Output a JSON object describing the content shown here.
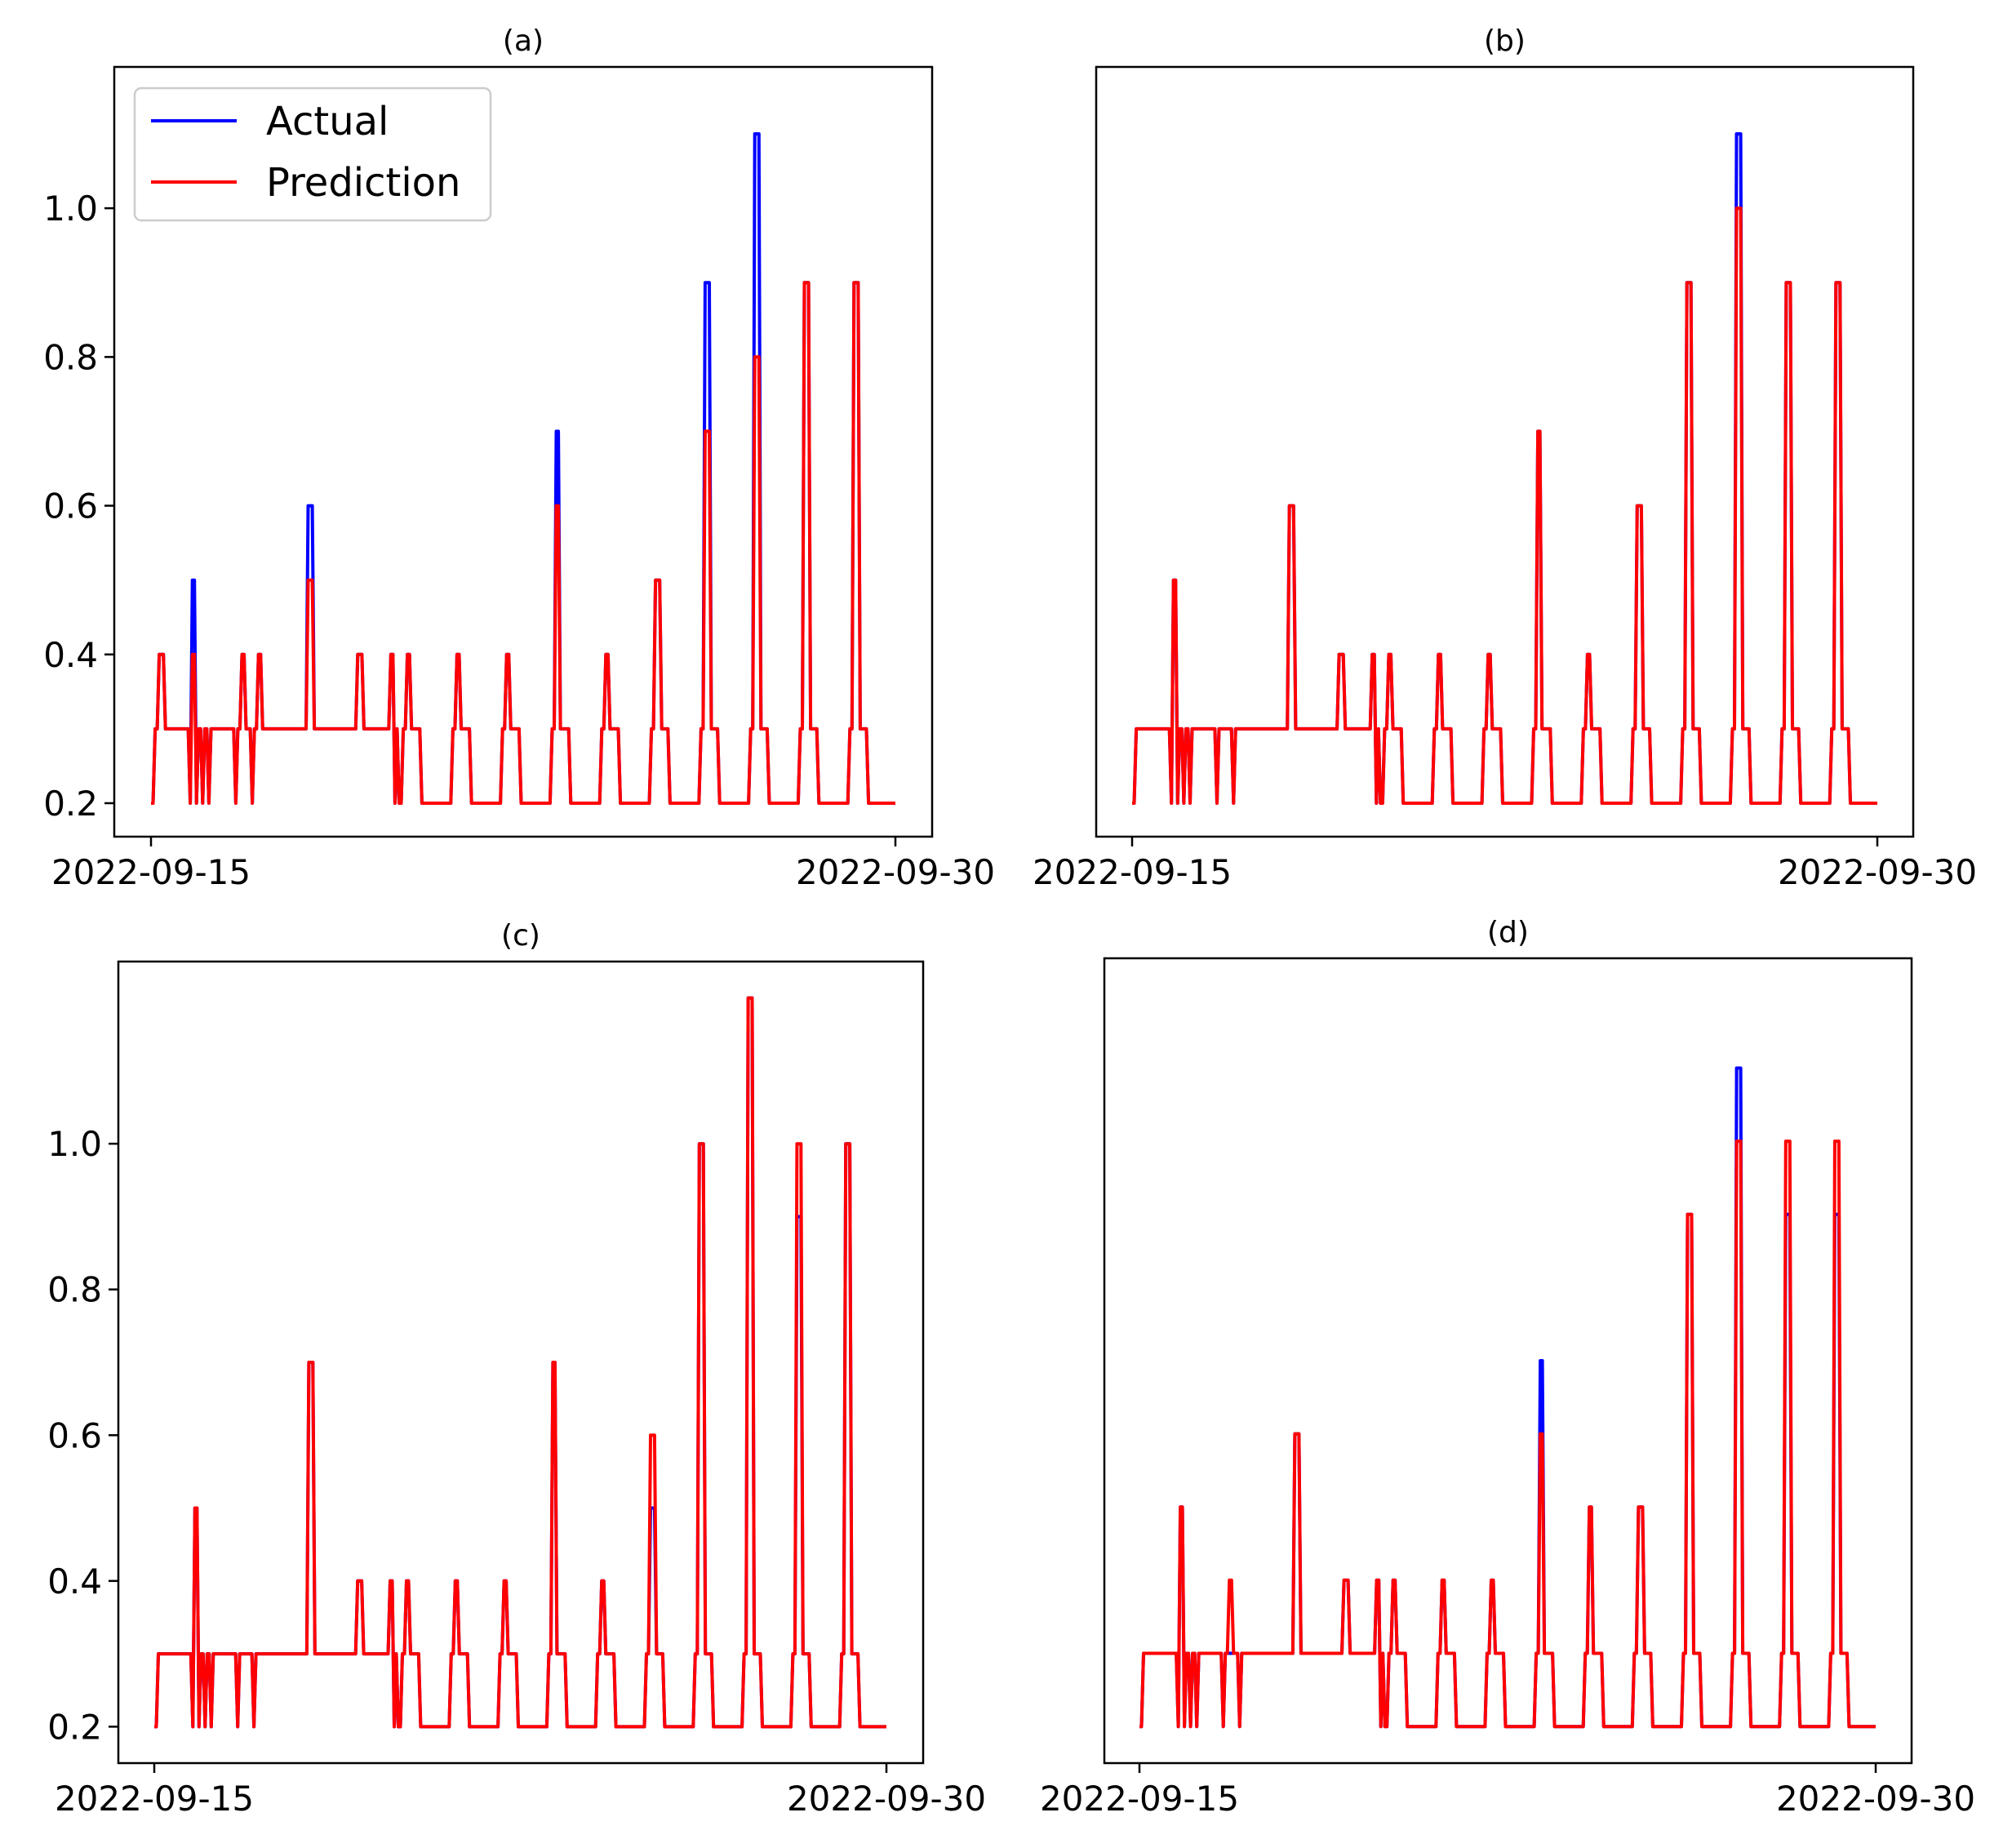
{
  "colors": {
    "actual": "#0000ff",
    "prediction": "#ff0000",
    "axes": "#000000"
  },
  "legend": {
    "items": [
      {
        "label": "Actual",
        "color": "#0000ff"
      },
      {
        "label": "Prediction",
        "color": "#ff0000"
      }
    ],
    "placement": "upper-left of panel (a)"
  },
  "chart_data": [
    {
      "title": "(a)",
      "type": "line",
      "x_ticks": [
        "2022-09-15",
        "2022-09-30"
      ],
      "y_ticks": [
        "0.2",
        "0.4",
        "0.6",
        "0.8",
        "1.0"
      ],
      "ylim": [
        0.155,
        1.19
      ],
      "series": [
        {
          "name": "Actual",
          "color": "#0000ff",
          "peaks": [
            {
              "t": 0.2,
              "v": 0.4
            },
            {
              "t": 0.85,
              "v": 0.5
            },
            {
              "t": 1.85,
              "v": 0.4
            },
            {
              "t": 2.2,
              "v": 0.4
            },
            {
              "t": 3.2,
              "v": 0.6
            },
            {
              "t": 4.2,
              "v": 0.4
            },
            {
              "t": 4.85,
              "v": 0.4
            },
            {
              "t": 5.2,
              "v": 0.4
            },
            {
              "t": 6.2,
              "v": 0.4
            },
            {
              "t": 7.2,
              "v": 0.4
            },
            {
              "t": 8.2,
              "v": 0.7
            },
            {
              "t": 9.2,
              "v": 0.4
            },
            {
              "t": 10.2,
              "v": 0.5
            },
            {
              "t": 11.2,
              "v": 0.9
            },
            {
              "t": 12.2,
              "v": 1.1
            },
            {
              "t": 13.2,
              "v": 0.9
            },
            {
              "t": 14.2,
              "v": 0.9
            }
          ]
        },
        {
          "name": "Prediction",
          "color": "#ff0000",
          "peaks": [
            {
              "t": 0.2,
              "v": 0.4
            },
            {
              "t": 0.85,
              "v": 0.4
            },
            {
              "t": 1.85,
              "v": 0.4
            },
            {
              "t": 2.2,
              "v": 0.4
            },
            {
              "t": 3.2,
              "v": 0.5
            },
            {
              "t": 4.2,
              "v": 0.4
            },
            {
              "t": 4.85,
              "v": 0.4
            },
            {
              "t": 5.2,
              "v": 0.4
            },
            {
              "t": 6.2,
              "v": 0.4
            },
            {
              "t": 7.2,
              "v": 0.4
            },
            {
              "t": 8.2,
              "v": 0.6
            },
            {
              "t": 9.2,
              "v": 0.4
            },
            {
              "t": 10.2,
              "v": 0.5
            },
            {
              "t": 11.2,
              "v": 0.7
            },
            {
              "t": 12.2,
              "v": 0.8
            },
            {
              "t": 13.2,
              "v": 0.9
            },
            {
              "t": 14.2,
              "v": 0.9
            }
          ]
        }
      ]
    },
    {
      "title": "(b)",
      "type": "line",
      "x_ticks": [
        "2022-09-15",
        "2022-09-30"
      ],
      "y_ticks": [],
      "ylim": [
        0.155,
        1.19
      ],
      "series": [
        {
          "name": "Actual",
          "color": "#0000ff",
          "peaks": [
            {
              "t": 0.2,
              "v": 0.3
            },
            {
              "t": 0.85,
              "v": 0.5
            },
            {
              "t": 1.85,
              "v": 0.3
            },
            {
              "t": 2.2,
              "v": 0.3
            },
            {
              "t": 3.2,
              "v": 0.6
            },
            {
              "t": 4.2,
              "v": 0.4
            },
            {
              "t": 4.85,
              "v": 0.4
            },
            {
              "t": 5.2,
              "v": 0.4
            },
            {
              "t": 6.2,
              "v": 0.4
            },
            {
              "t": 7.2,
              "v": 0.4
            },
            {
              "t": 8.2,
              "v": 0.7
            },
            {
              "t": 9.2,
              "v": 0.4
            },
            {
              "t": 10.2,
              "v": 0.6
            },
            {
              "t": 11.2,
              "v": 0.9
            },
            {
              "t": 12.2,
              "v": 1.1
            },
            {
              "t": 13.2,
              "v": 0.9
            },
            {
              "t": 14.2,
              "v": 0.9
            }
          ]
        },
        {
          "name": "Prediction",
          "color": "#ff0000",
          "peaks": [
            {
              "t": 0.2,
              "v": 0.3
            },
            {
              "t": 0.85,
              "v": 0.5
            },
            {
              "t": 1.85,
              "v": 0.3
            },
            {
              "t": 2.2,
              "v": 0.3
            },
            {
              "t": 3.2,
              "v": 0.6
            },
            {
              "t": 4.2,
              "v": 0.4
            },
            {
              "t": 4.85,
              "v": 0.4
            },
            {
              "t": 5.2,
              "v": 0.4
            },
            {
              "t": 6.2,
              "v": 0.4
            },
            {
              "t": 7.2,
              "v": 0.4
            },
            {
              "t": 8.2,
              "v": 0.7
            },
            {
              "t": 9.2,
              "v": 0.4
            },
            {
              "t": 10.2,
              "v": 0.6
            },
            {
              "t": 11.2,
              "v": 0.9
            },
            {
              "t": 12.2,
              "v": 1.0
            },
            {
              "t": 13.2,
              "v": 0.9
            },
            {
              "t": 14.2,
              "v": 0.9
            }
          ]
        }
      ]
    },
    {
      "title": "(c)",
      "type": "line",
      "x_ticks": [
        "2022-09-15",
        "2022-09-30"
      ],
      "y_ticks": [
        "0.2",
        "0.4",
        "0.6",
        "0.8",
        "1.0"
      ],
      "ylim": [
        0.15,
        1.25
      ],
      "series": [
        {
          "name": "Actual",
          "color": "#0000ff",
          "peaks": [
            {
              "t": 0.2,
              "v": 0.3
            },
            {
              "t": 0.85,
              "v": 0.5
            },
            {
              "t": 1.85,
              "v": 0.3
            },
            {
              "t": 2.2,
              "v": 0.3
            },
            {
              "t": 3.2,
              "v": 0.7
            },
            {
              "t": 4.2,
              "v": 0.4
            },
            {
              "t": 4.85,
              "v": 0.4
            },
            {
              "t": 5.2,
              "v": 0.4
            },
            {
              "t": 6.2,
              "v": 0.4
            },
            {
              "t": 7.2,
              "v": 0.4
            },
            {
              "t": 8.2,
              "v": 0.7
            },
            {
              "t": 9.2,
              "v": 0.4
            },
            {
              "t": 10.2,
              "v": 0.5
            },
            {
              "t": 11.2,
              "v": 1.0
            },
            {
              "t": 12.2,
              "v": 1.2
            },
            {
              "t": 13.2,
              "v": 0.9
            },
            {
              "t": 14.2,
              "v": 1.0
            }
          ]
        },
        {
          "name": "Prediction",
          "color": "#ff0000",
          "peaks": [
            {
              "t": 0.2,
              "v": 0.3
            },
            {
              "t": 0.85,
              "v": 0.5
            },
            {
              "t": 1.85,
              "v": 0.3
            },
            {
              "t": 2.2,
              "v": 0.3
            },
            {
              "t": 3.2,
              "v": 0.7
            },
            {
              "t": 4.2,
              "v": 0.4
            },
            {
              "t": 4.85,
              "v": 0.4
            },
            {
              "t": 5.2,
              "v": 0.4
            },
            {
              "t": 6.2,
              "v": 0.4
            },
            {
              "t": 7.2,
              "v": 0.4
            },
            {
              "t": 8.2,
              "v": 0.7
            },
            {
              "t": 9.2,
              "v": 0.4
            },
            {
              "t": 10.2,
              "v": 0.6
            },
            {
              "t": 11.2,
              "v": 1.0
            },
            {
              "t": 12.2,
              "v": 1.2
            },
            {
              "t": 13.2,
              "v": 1.0
            },
            {
              "t": 14.2,
              "v": 1.0
            }
          ]
        }
      ]
    },
    {
      "title": "(d)",
      "type": "line",
      "x_ticks": [
        "2022-09-15",
        "2022-09-30"
      ],
      "y_ticks": [],
      "ylim": [
        0.15,
        1.25
      ],
      "series": [
        {
          "name": "Actual",
          "color": "#0000ff",
          "peaks": [
            {
              "t": 0.2,
              "v": 0.3
            },
            {
              "t": 0.85,
              "v": 0.5
            },
            {
              "t": 1.85,
              "v": 0.3
            },
            {
              "t": 2.2,
              "v": 0.3
            },
            {
              "t": 3.2,
              "v": 0.6
            },
            {
              "t": 4.2,
              "v": 0.4
            },
            {
              "t": 4.85,
              "v": 0.4
            },
            {
              "t": 5.2,
              "v": 0.4
            },
            {
              "t": 6.2,
              "v": 0.4
            },
            {
              "t": 7.2,
              "v": 0.4
            },
            {
              "t": 8.2,
              "v": 0.7
            },
            {
              "t": 9.2,
              "v": 0.5
            },
            {
              "t": 10.2,
              "v": 0.5
            },
            {
              "t": 11.2,
              "v": 0.9
            },
            {
              "t": 12.2,
              "v": 1.1
            },
            {
              "t": 13.2,
              "v": 0.9
            },
            {
              "t": 14.2,
              "v": 0.9
            }
          ]
        },
        {
          "name": "Prediction",
          "color": "#ff0000",
          "peaks": [
            {
              "t": 0.2,
              "v": 0.3
            },
            {
              "t": 0.85,
              "v": 0.5
            },
            {
              "t": 1.85,
              "v": 0.4
            },
            {
              "t": 2.2,
              "v": 0.3
            },
            {
              "t": 3.2,
              "v": 0.6
            },
            {
              "t": 4.2,
              "v": 0.4
            },
            {
              "t": 4.85,
              "v": 0.4
            },
            {
              "t": 5.2,
              "v": 0.4
            },
            {
              "t": 6.2,
              "v": 0.4
            },
            {
              "t": 7.2,
              "v": 0.4
            },
            {
              "t": 8.2,
              "v": 0.6
            },
            {
              "t": 9.2,
              "v": 0.5
            },
            {
              "t": 10.2,
              "v": 0.5
            },
            {
              "t": 11.2,
              "v": 0.9
            },
            {
              "t": 12.2,
              "v": 1.0
            },
            {
              "t": 13.2,
              "v": 1.0
            },
            {
              "t": 14.2,
              "v": 1.0
            }
          ]
        }
      ]
    }
  ]
}
